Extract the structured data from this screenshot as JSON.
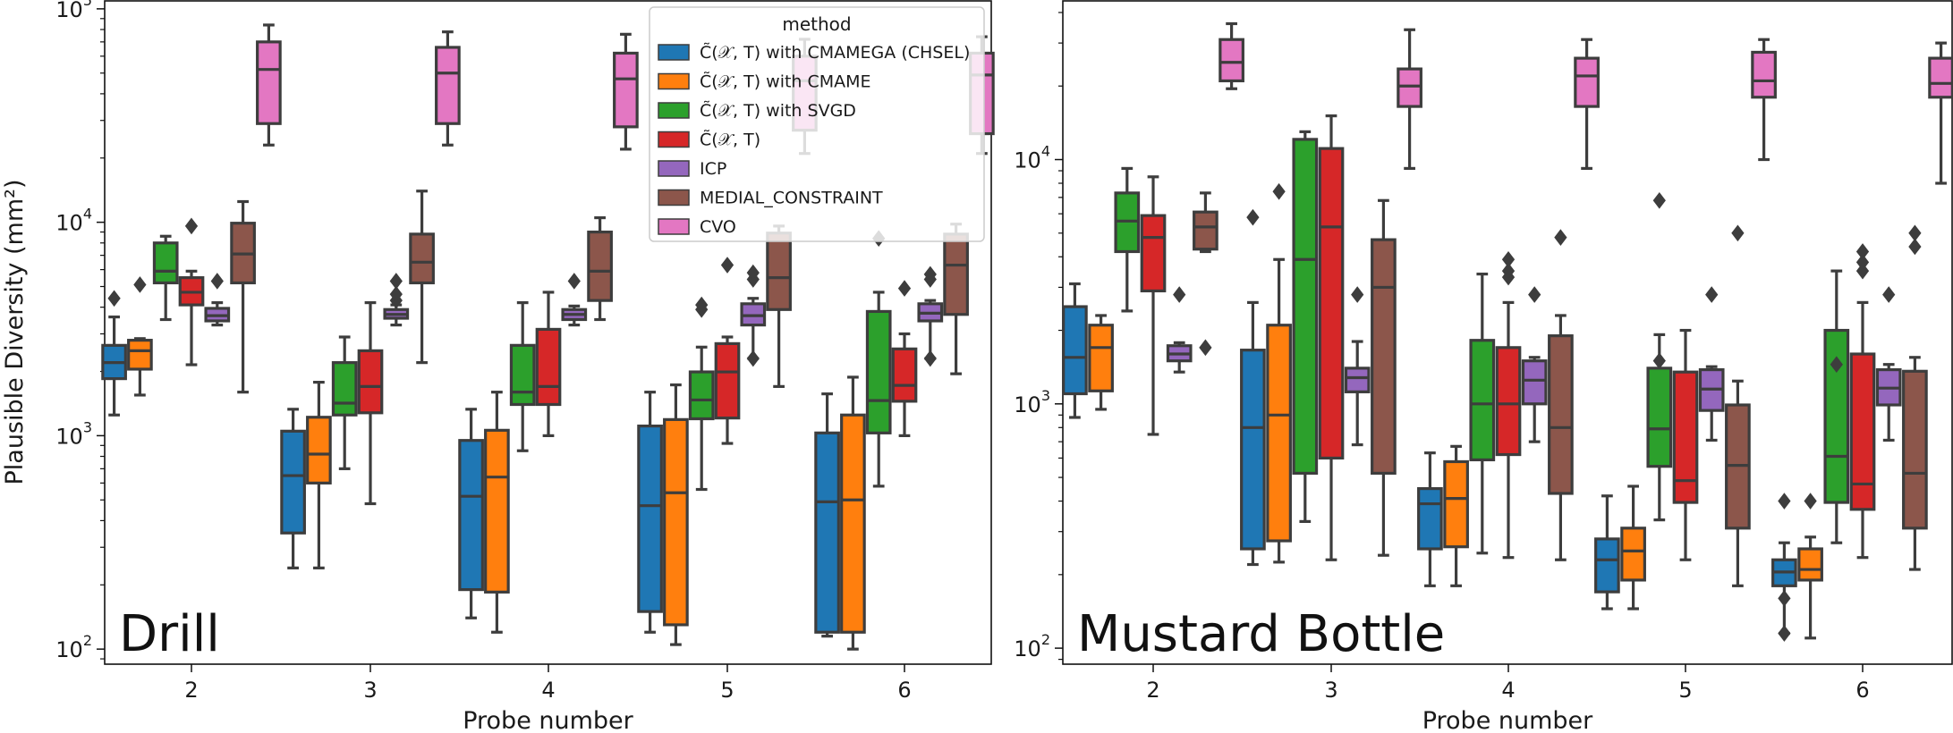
{
  "chart_data": [
    {
      "type": "box",
      "title": "Drill",
      "xlabel": "Probe number",
      "ylabel": "Plausible Diversity (mm²)",
      "yscale": "log",
      "ylim": [
        85,
        110000
      ],
      "yticks": [
        {
          "exp": "2",
          "value": 100
        },
        {
          "exp": "3",
          "value": 1000
        },
        {
          "exp": "4",
          "value": 10000
        },
        {
          "exp": "5",
          "value": 100000
        }
      ],
      "categories": [
        "2",
        "3",
        "4",
        "5",
        "6"
      ],
      "legend": {
        "title": "method",
        "position": "top-right",
        "entries": [
          {
            "label": "C̃(𝒳, T) with CMAMEGA (CHSEL)",
            "color": "#1f77b4"
          },
          {
            "label": "C̃(𝒳, T) with CMAME",
            "color": "#ff7f0e"
          },
          {
            "label": "C̃(𝒳, T) with SVGD",
            "color": "#2ca02c"
          },
          {
            "label": "C̃(𝒳, T)",
            "color": "#d62728"
          },
          {
            "label": "ICP",
            "color": "#9467bd"
          },
          {
            "label": "MEDIAL_CONSTRAINT",
            "color": "#8c564b"
          },
          {
            "label": "CVO",
            "color": "#e377c2"
          }
        ]
      },
      "boxes": [
        [
          {
            "wlo": 1250,
            "q1": 1850,
            "med": 2200,
            "q3": 2650,
            "whi": 3600,
            "fliers": [
              4400
            ]
          },
          {
            "wlo": 1550,
            "q1": 2050,
            "med": 2500,
            "q3": 2800,
            "whi": 2850,
            "fliers": [
              5100
            ]
          },
          {
            "wlo": 3500,
            "q1": 5200,
            "med": 5900,
            "q3": 8000,
            "whi": 8600,
            "fliers": []
          },
          {
            "wlo": 2150,
            "q1": 4100,
            "med": 4700,
            "q3": 5500,
            "whi": 5900,
            "fliers": [
              9600
            ]
          },
          {
            "wlo": 3300,
            "q1": 3450,
            "med": 3650,
            "q3": 3950,
            "whi": 4200,
            "fliers": [
              5300
            ]
          },
          {
            "wlo": 1600,
            "q1": 5200,
            "med": 7100,
            "q3": 9900,
            "whi": 12500,
            "fliers": []
          },
          {
            "wlo": 23000,
            "q1": 29000,
            "med": 52000,
            "q3": 70000,
            "whi": 84000,
            "fliers": []
          }
        ],
        [
          {
            "wlo": 240,
            "q1": 350,
            "med": 650,
            "q3": 1050,
            "whi": 1330,
            "fliers": []
          },
          {
            "wlo": 240,
            "q1": 600,
            "med": 820,
            "q3": 1220,
            "whi": 1780,
            "fliers": []
          },
          {
            "wlo": 700,
            "q1": 1250,
            "med": 1420,
            "q3": 2200,
            "whi": 2900,
            "fliers": []
          },
          {
            "wlo": 480,
            "q1": 1280,
            "med": 1700,
            "q3": 2500,
            "whi": 4200,
            "fliers": []
          },
          {
            "wlo": 3300,
            "q1": 3550,
            "med": 3700,
            "q3": 3900,
            "whi": 4100,
            "fliers": [
              4300,
              4600,
              5300
            ]
          },
          {
            "wlo": 2200,
            "q1": 5200,
            "med": 6500,
            "q3": 8800,
            "whi": 14000,
            "fliers": []
          },
          {
            "wlo": 23000,
            "q1": 29000,
            "med": 50000,
            "q3": 66000,
            "whi": 78000,
            "fliers": []
          }
        ],
        [
          {
            "wlo": 140,
            "q1": 190,
            "med": 520,
            "q3": 950,
            "whi": 1330,
            "fliers": []
          },
          {
            "wlo": 120,
            "q1": 185,
            "med": 640,
            "q3": 1060,
            "whi": 1600,
            "fliers": []
          },
          {
            "wlo": 850,
            "q1": 1400,
            "med": 1600,
            "q3": 2650,
            "whi": 4200,
            "fliers": []
          },
          {
            "wlo": 1000,
            "q1": 1400,
            "med": 1700,
            "q3": 3150,
            "whi": 4700,
            "fliers": []
          },
          {
            "wlo": 3300,
            "q1": 3500,
            "med": 3700,
            "q3": 3900,
            "whi": 4050,
            "fliers": [
              5300
            ]
          },
          {
            "wlo": 3500,
            "q1": 4300,
            "med": 5900,
            "q3": 9000,
            "whi": 10500,
            "fliers": []
          },
          {
            "wlo": 22000,
            "q1": 28000,
            "med": 47000,
            "q3": 62000,
            "whi": 76000,
            "fliers": []
          }
        ],
        [
          {
            "wlo": 120,
            "q1": 150,
            "med": 470,
            "q3": 1110,
            "whi": 1600,
            "fliers": []
          },
          {
            "wlo": 105,
            "q1": 130,
            "med": 540,
            "q3": 1190,
            "whi": 1730,
            "fliers": []
          },
          {
            "wlo": 560,
            "q1": 1200,
            "med": 1470,
            "q3": 1990,
            "whi": 2600,
            "fliers": [
              3900,
              4100
            ]
          },
          {
            "wlo": 920,
            "q1": 1210,
            "med": 1990,
            "q3": 2700,
            "whi": 2900,
            "fliers": [
              6300
            ]
          },
          {
            "wlo": 2300,
            "q1": 3300,
            "med": 3650,
            "q3": 4150,
            "whi": 4400,
            "fliers": [
              2300,
              5400,
              5800
            ]
          },
          {
            "wlo": 1700,
            "q1": 3900,
            "med": 5500,
            "q3": 8900,
            "whi": 9600,
            "fliers": []
          },
          {
            "wlo": 21000,
            "q1": 27000,
            "med": 46000,
            "q3": 60000,
            "whi": 72000,
            "fliers": []
          }
        ],
        [
          {
            "wlo": 115,
            "q1": 120,
            "med": 490,
            "q3": 1030,
            "whi": 1570,
            "fliers": []
          },
          {
            "wlo": 100,
            "q1": 120,
            "med": 500,
            "q3": 1250,
            "whi": 1880,
            "fliers": []
          },
          {
            "wlo": 580,
            "q1": 1030,
            "med": 1460,
            "q3": 3820,
            "whi": 4700,
            "fliers": [
              8400
            ]
          },
          {
            "wlo": 1000,
            "q1": 1450,
            "med": 1720,
            "q3": 2550,
            "whi": 3000,
            "fliers": [
              4900
            ]
          },
          {
            "wlo": 2300,
            "q1": 3450,
            "med": 3750,
            "q3": 4150,
            "whi": 4300,
            "fliers": [
              2300,
              5400,
              5700
            ]
          },
          {
            "wlo": 1950,
            "q1": 3700,
            "med": 6300,
            "q3": 8800,
            "whi": 9800,
            "fliers": []
          },
          {
            "wlo": 21000,
            "q1": 26000,
            "med": 49000,
            "q3": 62000,
            "whi": 74000,
            "fliers": []
          }
        ]
      ]
    },
    {
      "type": "box",
      "title": "Mustard Bottle",
      "xlabel": "Probe number",
      "ylabel": "",
      "yscale": "log",
      "ylim": [
        86,
        45000
      ],
      "yticks": [
        {
          "exp": "2",
          "value": 100
        },
        {
          "exp": "3",
          "value": 1000
        },
        {
          "exp": "4",
          "value": 10000
        }
      ],
      "categories": [
        "2",
        "3",
        "4",
        "5",
        "6"
      ],
      "boxes": [
        [
          {
            "wlo": 880,
            "q1": 1100,
            "med": 1550,
            "q3": 2500,
            "whi": 3100,
            "fliers": []
          },
          {
            "wlo": 950,
            "q1": 1130,
            "med": 1700,
            "q3": 2100,
            "whi": 2300,
            "fliers": []
          },
          {
            "wlo": 2400,
            "q1": 4200,
            "med": 5600,
            "q3": 7300,
            "whi": 9200,
            "fliers": []
          },
          {
            "wlo": 750,
            "q1": 2900,
            "med": 4800,
            "q3": 5900,
            "whi": 8500,
            "fliers": []
          },
          {
            "wlo": 1350,
            "q1": 1500,
            "med": 1600,
            "q3": 1730,
            "whi": 1780,
            "fliers": [
              2800
            ]
          },
          {
            "wlo": 4200,
            "q1": 4300,
            "med": 5300,
            "q3": 6100,
            "whi": 7300,
            "fliers": [
              1700
            ]
          },
          {
            "wlo": 19500,
            "q1": 21000,
            "med": 25000,
            "q3": 31000,
            "whi": 36000,
            "fliers": []
          }
        ],
        [
          {
            "wlo": 220,
            "q1": 255,
            "med": 800,
            "q3": 1660,
            "whi": 2600,
            "fliers": [
              5800
            ]
          },
          {
            "wlo": 225,
            "q1": 275,
            "med": 900,
            "q3": 2100,
            "whi": 3900,
            "fliers": [
              7400
            ]
          },
          {
            "wlo": 330,
            "q1": 520,
            "med": 3900,
            "q3": 12100,
            "whi": 13000,
            "fliers": []
          },
          {
            "wlo": 230,
            "q1": 600,
            "med": 5300,
            "q3": 11100,
            "whi": 15100,
            "fliers": []
          },
          {
            "wlo": 680,
            "q1": 1120,
            "med": 1280,
            "q3": 1400,
            "whi": 1800,
            "fliers": [
              2800
            ]
          },
          {
            "wlo": 240,
            "q1": 520,
            "med": 3000,
            "q3": 4700,
            "whi": 6800,
            "fliers": []
          },
          {
            "wlo": 9200,
            "q1": 16500,
            "med": 20000,
            "q3": 23500,
            "whi": 34000,
            "fliers": []
          }
        ],
        [
          {
            "wlo": 180,
            "q1": 255,
            "med": 390,
            "q3": 450,
            "whi": 630,
            "fliers": []
          },
          {
            "wlo": 180,
            "q1": 260,
            "med": 410,
            "q3": 580,
            "whi": 670,
            "fliers": []
          },
          {
            "wlo": 245,
            "q1": 590,
            "med": 1000,
            "q3": 1820,
            "whi": 3400,
            "fliers": []
          },
          {
            "wlo": 235,
            "q1": 620,
            "med": 1000,
            "q3": 1700,
            "whi": 2600,
            "fliers": [
              3300,
              3500,
              3900
            ]
          },
          {
            "wlo": 700,
            "q1": 1000,
            "med": 1250,
            "q3": 1500,
            "whi": 1550,
            "fliers": [
              2800
            ]
          },
          {
            "wlo": 230,
            "q1": 430,
            "med": 800,
            "q3": 1900,
            "whi": 2300,
            "fliers": [
              4800
            ]
          },
          {
            "wlo": 9200,
            "q1": 16500,
            "med": 22000,
            "q3": 26000,
            "whi": 31000,
            "fliers": []
          }
        ],
        [
          {
            "wlo": 145,
            "q1": 170,
            "med": 230,
            "q3": 280,
            "whi": 420,
            "fliers": []
          },
          {
            "wlo": 145,
            "q1": 190,
            "med": 250,
            "q3": 310,
            "whi": 460,
            "fliers": []
          },
          {
            "wlo": 335,
            "q1": 555,
            "med": 790,
            "q3": 1400,
            "whi": 1920,
            "fliers": [
              1500,
              6800
            ]
          },
          {
            "wlo": 230,
            "q1": 395,
            "med": 485,
            "q3": 1350,
            "whi": 2000,
            "fliers": []
          },
          {
            "wlo": 710,
            "q1": 940,
            "med": 1150,
            "q3": 1380,
            "whi": 1420,
            "fliers": [
              2800
            ]
          },
          {
            "wlo": 180,
            "q1": 310,
            "med": 560,
            "q3": 990,
            "whi": 1240,
            "fliers": [
              5000
            ]
          },
          {
            "wlo": 10000,
            "q1": 18000,
            "med": 21000,
            "q3": 27500,
            "whi": 31000,
            "fliers": []
          }
        ],
        [
          {
            "wlo": 115,
            "q1": 180,
            "med": 205,
            "q3": 230,
            "whi": 270,
            "fliers": [
              115,
              160,
              400
            ]
          },
          {
            "wlo": 110,
            "q1": 190,
            "med": 210,
            "q3": 255,
            "whi": 285,
            "fliers": [
              400
            ]
          },
          {
            "wlo": 270,
            "q1": 395,
            "med": 610,
            "q3": 2000,
            "whi": 3500,
            "fliers": [
              1450
            ]
          },
          {
            "wlo": 235,
            "q1": 370,
            "med": 470,
            "q3": 1600,
            "whi": 2600,
            "fliers": [
              3500,
              3800,
              4200
            ]
          },
          {
            "wlo": 710,
            "q1": 990,
            "med": 1160,
            "q3": 1380,
            "whi": 1450,
            "fliers": [
              2800
            ]
          },
          {
            "wlo": 210,
            "q1": 310,
            "med": 520,
            "q3": 1360,
            "whi": 1550,
            "fliers": [
              4400,
              5000
            ]
          },
          {
            "wlo": 8000,
            "q1": 18000,
            "med": 20500,
            "q3": 26000,
            "whi": 30000,
            "fliers": []
          }
        ]
      ]
    }
  ]
}
